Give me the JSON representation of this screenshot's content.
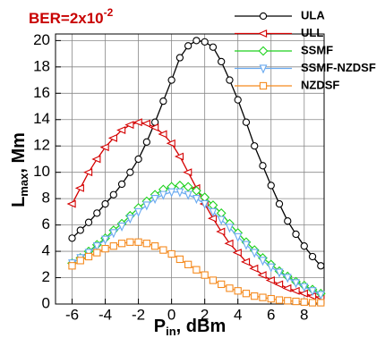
{
  "chart_data": {
    "type": "line",
    "annotation": [
      "BER=2x10",
      "-2"
    ],
    "xlabel": [
      "P",
      "in",
      ", dBm"
    ],
    "ylabel": [
      "L",
      "max",
      ", Mm"
    ],
    "x": [
      -6,
      -5.5,
      -5,
      -4.5,
      -4,
      -3.5,
      -3,
      -2.5,
      -2,
      -1.5,
      -1,
      -0.5,
      0,
      0.5,
      1,
      1.5,
      2,
      2.5,
      3,
      3.5,
      4,
      4.5,
      5,
      5.5,
      6,
      6.5,
      7,
      7.5,
      8,
      8.5,
      9
    ],
    "series": [
      {
        "name": "ULA",
        "color": "#000000",
        "marker": "circle",
        "values": [
          5.0,
          5.6,
          6.2,
          6.9,
          7.6,
          8.3,
          9.1,
          10.0,
          11.0,
          12.3,
          13.8,
          15.4,
          17.0,
          18.7,
          19.6,
          20.0,
          19.9,
          19.5,
          18.4,
          17.0,
          15.5,
          13.8,
          12.0,
          10.5,
          9.0,
          7.6,
          6.3,
          5.3,
          4.4,
          3.6,
          2.9
        ]
      },
      {
        "name": "ULL",
        "color": "#d40000",
        "marker": "triangle-left",
        "values": [
          7.6,
          8.8,
          10.0,
          11.0,
          11.9,
          12.6,
          13.2,
          13.6,
          13.8,
          13.7,
          13.4,
          12.9,
          12.2,
          11.2,
          10.0,
          8.8,
          7.6,
          6.5,
          5.5,
          4.6,
          3.9,
          3.2,
          2.7,
          2.2,
          1.8,
          1.5,
          1.2,
          1.0,
          0.8,
          0.6,
          0.5
        ]
      },
      {
        "name": "SSMF",
        "color": "#1ed11e",
        "marker": "diamond",
        "values": [
          3.1,
          3.5,
          4.0,
          4.5,
          5.0,
          5.6,
          6.1,
          6.7,
          7.3,
          7.8,
          8.3,
          8.7,
          8.9,
          9.0,
          8.9,
          8.6,
          8.1,
          7.5,
          6.9,
          6.1,
          5.4,
          4.7,
          4.1,
          3.5,
          3.0,
          2.5,
          2.1,
          1.7,
          1.4,
          1.1,
          0.8
        ]
      },
      {
        "name": "SSMF-NZDSF",
        "color": "#6aaaf0",
        "marker": "triangle-down",
        "values": [
          3.1,
          3.5,
          3.9,
          4.4,
          4.9,
          5.4,
          5.9,
          6.5,
          7.0,
          7.5,
          8.0,
          8.3,
          8.5,
          8.5,
          8.3,
          8.0,
          7.6,
          7.0,
          6.4,
          5.8,
          5.1,
          4.5,
          3.9,
          3.3,
          2.8,
          2.4,
          2.0,
          1.6,
          1.3,
          1.0,
          0.7
        ]
      },
      {
        "name": "NZDSF",
        "color": "#f58a1e",
        "marker": "square",
        "values": [
          2.9,
          3.3,
          3.6,
          3.9,
          4.2,
          4.4,
          4.6,
          4.7,
          4.7,
          4.6,
          4.4,
          4.1,
          3.8,
          3.4,
          3.0,
          2.6,
          2.2,
          1.8,
          1.5,
          1.2,
          1.0,
          0.8,
          0.6,
          0.5,
          0.4,
          0.3,
          0.25,
          0.2,
          0.15,
          0.1,
          0.1
        ]
      }
    ],
    "xlim": [
      -7,
      9.2
    ],
    "xticks": [
      -6,
      -4,
      -2,
      0,
      2,
      4,
      6,
      8
    ],
    "ylim": [
      0,
      20.5
    ],
    "yticks": [
      0,
      2,
      4,
      6,
      8,
      10,
      12,
      14,
      16,
      18,
      20
    ],
    "grid": true,
    "legend": "upper right"
  }
}
